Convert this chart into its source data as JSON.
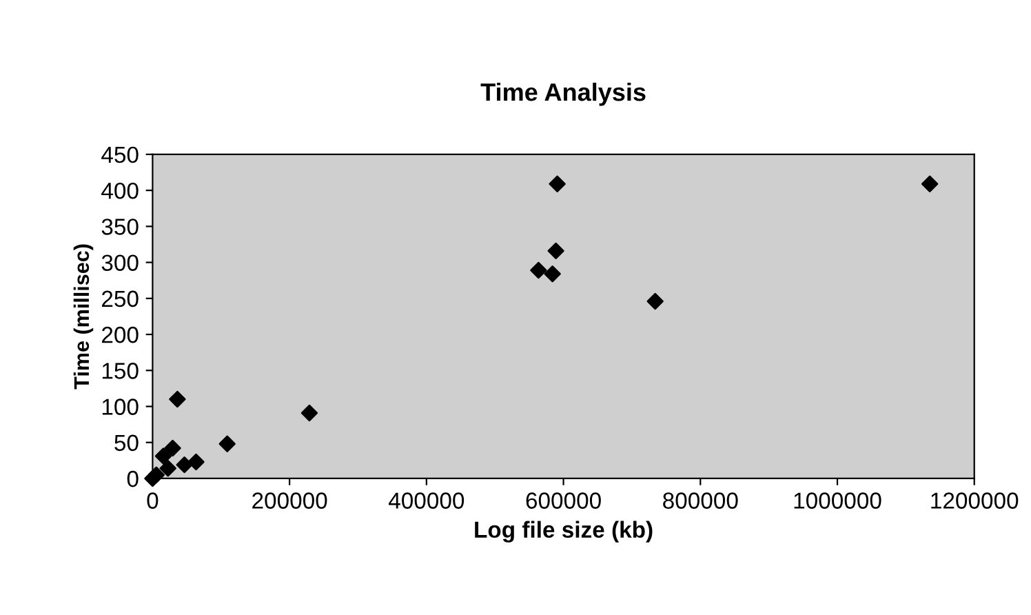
{
  "chart_data": {
    "type": "scatter",
    "title": "Time Analysis",
    "xlabel": "Log file size (kb)",
    "ylabel": "Time (millisec)",
    "x": [
      0,
      5500,
      22500,
      46500,
      63500,
      15700,
      29300,
      109000,
      36200,
      229000,
      563600,
      584000,
      589000,
      591000,
      734000,
      1135000
    ],
    "series": [
      {
        "color": "#000000",
        "values": [
          0,
          5,
          14,
          19,
          23,
          31,
          42,
          48,
          110,
          91,
          289,
          284,
          316,
          409,
          246,
          409
        ]
      }
    ],
    "xlim": [
      0,
      1200000
    ],
    "xticks": [
      0,
      200000,
      400000,
      600000,
      800000,
      1000000,
      1200000
    ],
    "ylim": [
      0,
      450
    ],
    "yticks": [
      0,
      50,
      100,
      150,
      200,
      250,
      300,
      350,
      400,
      450
    ],
    "marker": "diamond",
    "grid": false,
    "legend": false
  }
}
